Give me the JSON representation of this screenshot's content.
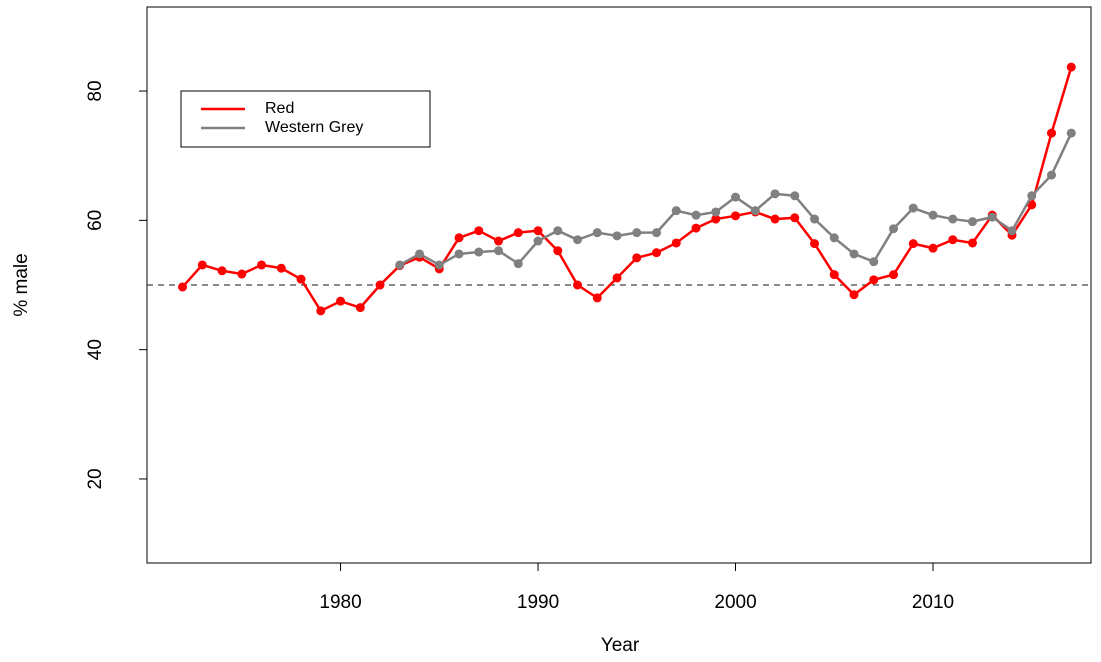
{
  "chart_data": {
    "type": "line",
    "x_label": "Year",
    "y_label": "% male",
    "x": [
      1972,
      1973,
      1974,
      1975,
      1976,
      1977,
      1978,
      1979,
      1980,
      1981,
      1982,
      1983,
      1984,
      1985,
      1986,
      1987,
      1988,
      1989,
      1990,
      1991,
      1992,
      1993,
      1994,
      1995,
      1996,
      1997,
      1998,
      1999,
      2000,
      2001,
      2002,
      2003,
      2004,
      2005,
      2006,
      2007,
      2008,
      2009,
      2010,
      2011,
      2012,
      2013,
      2014,
      2015,
      2016,
      2017
    ],
    "series": [
      {
        "name": "Red",
        "color": "#ff0000",
        "values": [
          49.7,
          53.1,
          52.2,
          51.7,
          53.1,
          52.6,
          50.9,
          46.0,
          47.5,
          46.5,
          50.0,
          53.0,
          54.3,
          52.5,
          57.3,
          58.4,
          56.8,
          58.1,
          58.4,
          55.3,
          50.0,
          48.0,
          51.1,
          54.2,
          55.0,
          56.5,
          58.8,
          60.2,
          60.7,
          61.3,
          60.2,
          60.4,
          56.4,
          51.6,
          48.5,
          50.8,
          51.6,
          56.4,
          55.7,
          57.0,
          56.5,
          60.8,
          57.7,
          62.4,
          73.5,
          83.7
        ]
      },
      {
        "name": "Western Grey",
        "color": "#808080",
        "values": [
          null,
          null,
          null,
          null,
          null,
          null,
          null,
          null,
          null,
          null,
          null,
          53.1,
          54.8,
          53.1,
          54.8,
          55.1,
          55.3,
          53.3,
          56.8,
          58.4,
          57.0,
          58.1,
          57.6,
          58.1,
          58.1,
          61.5,
          60.8,
          61.3,
          63.6,
          61.5,
          64.1,
          63.8,
          60.2,
          57.3,
          54.8,
          53.6,
          58.7,
          61.9,
          60.8,
          60.2,
          59.8,
          60.5,
          58.4,
          63.8,
          67.0,
          73.5
        ]
      }
    ],
    "xlim": [
      1970.2,
      2018.0
    ],
    "xticks": [
      1980,
      1990,
      2000,
      2010
    ],
    "ylim": [
      7,
      93
    ],
    "yticks": [
      20,
      40,
      60,
      80
    ],
    "reference_line": {
      "value": 50,
      "color": "#444444",
      "style": "dashed"
    },
    "legend": "upper left",
    "grid": false
  }
}
